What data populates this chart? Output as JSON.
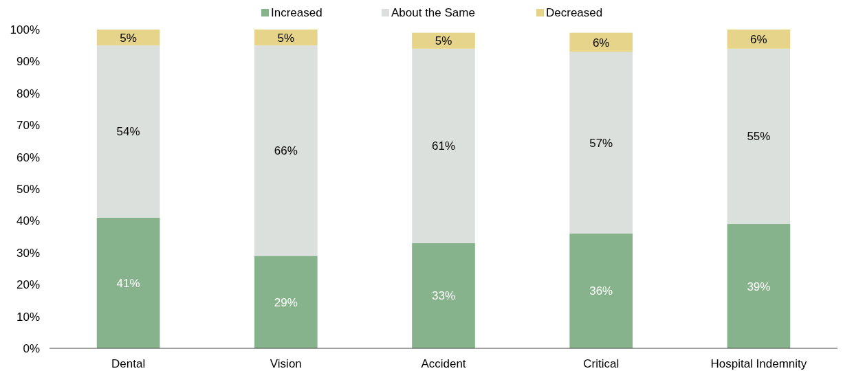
{
  "chart_data": {
    "type": "bar",
    "stacked": true,
    "categories": [
      "Dental",
      "Vision",
      "Accident",
      "Critical",
      "Hospital Indemnity"
    ],
    "series": [
      {
        "name": "Increased",
        "color": "#86b38b",
        "values": [
          41,
          29,
          33,
          36,
          39
        ],
        "value_labels": [
          "41%",
          "29%",
          "33%",
          "36%",
          "39%"
        ]
      },
      {
        "name": "About the Same",
        "color": "#dce0dc",
        "values": [
          54,
          66,
          61,
          57,
          55
        ],
        "value_labels": [
          "54%",
          "66%",
          "61%",
          "57%",
          "55%"
        ]
      },
      {
        "name": "Decreased",
        "color": "#e6d48a",
        "values": [
          5,
          5,
          5,
          6,
          6
        ],
        "value_labels": [
          "5%",
          "5%",
          "5%",
          "6%",
          "6%"
        ]
      }
    ],
    "ylim": [
      0,
      100
    ],
    "yticks": [
      {
        "value": 0,
        "label": "0%"
      },
      {
        "value": 10,
        "label": "10%"
      },
      {
        "value": 20,
        "label": "20%"
      },
      {
        "value": 30,
        "label": "30%"
      },
      {
        "value": 40,
        "label": "40%"
      },
      {
        "value": 50,
        "label": "50%"
      },
      {
        "value": 60,
        "label": "60%"
      },
      {
        "value": 70,
        "label": "70%"
      },
      {
        "value": 80,
        "label": "80%"
      },
      {
        "value": 90,
        "label": "90%"
      },
      {
        "value": 100,
        "label": "100%"
      }
    ],
    "legend": "top"
  }
}
